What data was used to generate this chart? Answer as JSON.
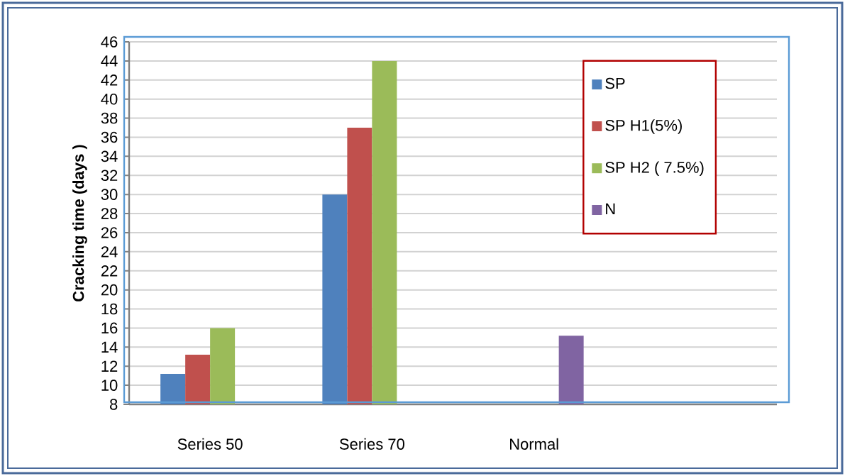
{
  "chart_data": {
    "type": "bar",
    "ylabel": "Cracking time (days )",
    "categories": [
      "Series 50",
      "Series 70",
      "Normal",
      null
    ],
    "series": [
      {
        "name": "SP",
        "color": "#4f81bd",
        "values": [
          11.2,
          30,
          null,
          null
        ]
      },
      {
        "name": "SP H1(5%)",
        "color": "#c0504d",
        "values": [
          13.2,
          37,
          null,
          null
        ]
      },
      {
        "name": "SP H2 ( 7.5%)",
        "color": "#9bbb59",
        "values": [
          16,
          44,
          null,
          null
        ]
      },
      {
        "name": "N",
        "color": "#8064a2",
        "values": [
          null,
          null,
          15.2,
          null
        ]
      }
    ],
    "ylim": [
      8,
      46
    ],
    "yticks": [
      8,
      10,
      12,
      14,
      16,
      18,
      20,
      22,
      24,
      26,
      28,
      30,
      32,
      34,
      36,
      38,
      40,
      42,
      44,
      46
    ],
    "grid": "y",
    "legend": "top right"
  }
}
